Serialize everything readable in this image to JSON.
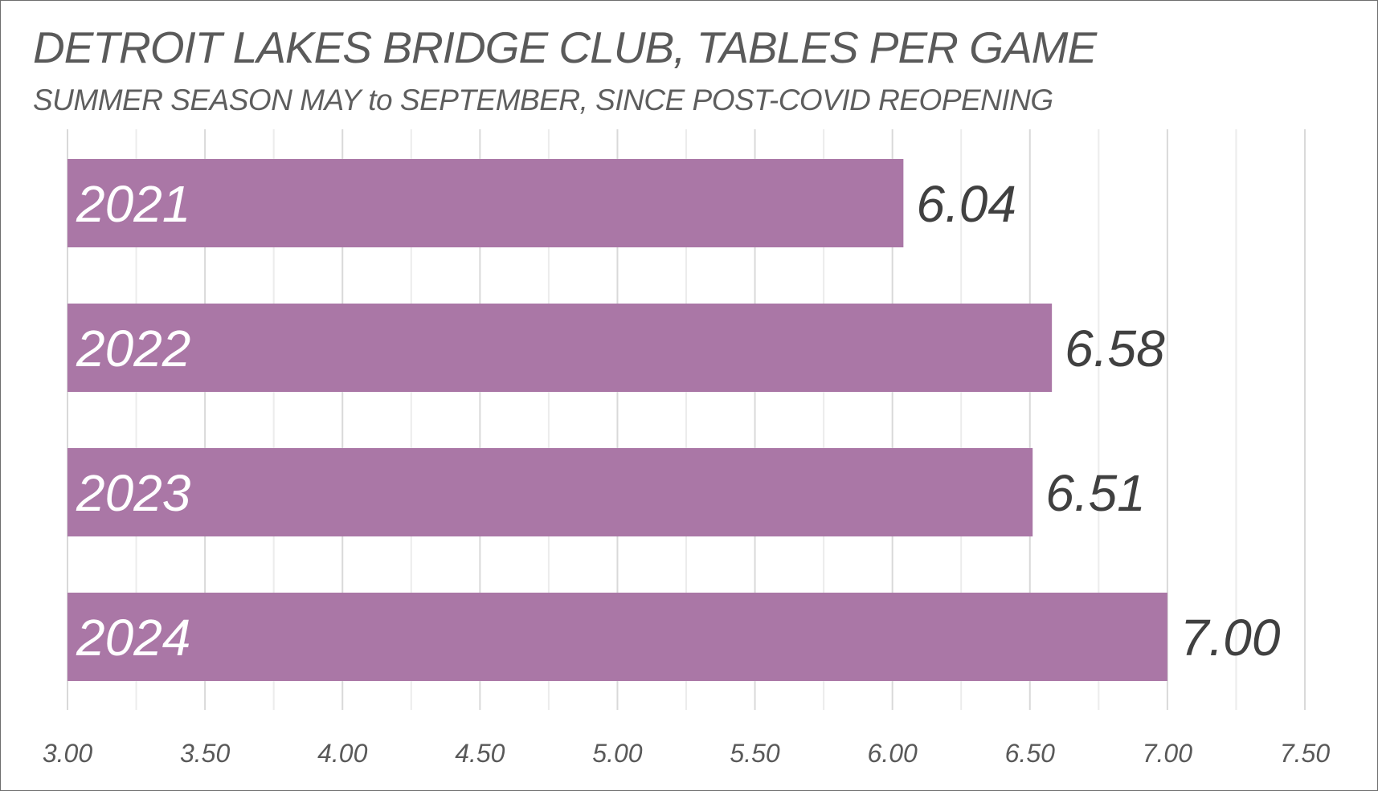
{
  "chart_data": {
    "type": "bar",
    "orientation": "horizontal",
    "title": "DETROIT LAKES BRIDGE CLUB, TABLES PER GAME",
    "subtitle": "SUMMER SEASON MAY to SEPTEMBER, SINCE POST-COVID REOPENING",
    "categories": [
      "2021",
      "2022",
      "2023",
      "2024"
    ],
    "values": [
      6.04,
      6.58,
      6.51,
      7.0
    ],
    "data_labels": [
      "6.04",
      "6.58",
      "6.51",
      "7.00"
    ],
    "xlim": [
      3.0,
      7.5
    ],
    "x_ticks": [
      3.0,
      3.5,
      4.0,
      4.5,
      5.0,
      5.5,
      6.0,
      6.5,
      7.0,
      7.5
    ],
    "x_tick_labels": [
      "3.00",
      "3.50",
      "4.00",
      "4.50",
      "5.00",
      "5.50",
      "6.00",
      "6.50",
      "7.00",
      "7.50"
    ],
    "minor_grid_step": 0.25,
    "grid": true,
    "legend": "none",
    "bar_color": "#a874a4",
    "grid_color": "#d9d9d9",
    "category_label_color": "#ffffff",
    "data_label_color": "#404040"
  }
}
